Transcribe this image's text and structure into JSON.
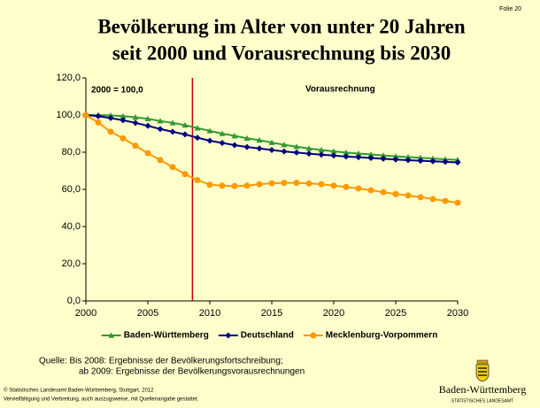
{
  "slide_label": "Folie 20",
  "chart_data": {
    "type": "line",
    "title": [
      "Bevölkerung im Alter von unter 20 Jahren",
      "seit 2000 und Vorausrechnung bis 2030"
    ],
    "annotations": [
      "2000 = 100,0",
      "Vorausrechnung"
    ],
    "forecast_start": 2008.6,
    "x": [
      2000,
      2001,
      2002,
      2003,
      2004,
      2005,
      2006,
      2007,
      2008,
      2009,
      2010,
      2011,
      2012,
      2013,
      2014,
      2015,
      2016,
      2017,
      2018,
      2019,
      2020,
      2021,
      2022,
      2023,
      2024,
      2025,
      2026,
      2027,
      2028,
      2029,
      2030
    ],
    "xlim": [
      2000,
      2030
    ],
    "xticks": [
      2000,
      2005,
      2010,
      2015,
      2020,
      2025,
      2030
    ],
    "ylim": [
      0,
      120
    ],
    "yticks": [
      {
        "value": 0,
        "label": "0,0"
      },
      {
        "value": 20,
        "label": "20,0"
      },
      {
        "value": 40,
        "label": "40,0"
      },
      {
        "value": 60,
        "label": "60,0"
      },
      {
        "value": 80,
        "label": "80,0"
      },
      {
        "value": 100,
        "label": "100,0"
      },
      {
        "value": 120,
        "label": "120,0"
      }
    ],
    "grid": false,
    "legend": "bottom",
    "series": [
      {
        "name": "Baden-Württemberg",
        "color": "#339933",
        "marker": "triangle",
        "values": [
          100,
          100,
          99.8,
          99.4,
          98.8,
          98,
          96.8,
          95.8,
          94.6,
          93,
          91.5,
          90,
          88.8,
          87.5,
          86.5,
          85.2,
          84,
          83,
          82,
          81.2,
          80.5,
          79.8,
          79.3,
          78.8,
          78.3,
          77.8,
          77.4,
          77,
          76.6,
          76.2,
          75.9
        ]
      },
      {
        "name": "Deutschland",
        "color": "#000080",
        "marker": "diamond",
        "values": [
          100,
          99.4,
          98.4,
          97.2,
          95.8,
          94.2,
          92.5,
          91,
          89.6,
          87.8,
          86.2,
          85,
          83.8,
          82.8,
          82,
          81.2,
          80.4,
          79.8,
          79.2,
          78.7,
          78.2,
          77.7,
          77.3,
          76.9,
          76.5,
          76.1,
          75.7,
          75.4,
          75.1,
          74.8,
          74.5
        ]
      },
      {
        "name": "Mecklenburg-Vorpommern",
        "color": "#ff9900",
        "marker": "circle",
        "values": [
          100,
          96,
          91,
          87.5,
          83.5,
          79.5,
          75.8,
          72,
          68.2,
          65,
          62.5,
          62,
          61.8,
          62,
          62.8,
          63.3,
          63.5,
          63.5,
          63.2,
          62.8,
          62,
          61.3,
          60.5,
          59.5,
          58.5,
          57.5,
          56.7,
          55.8,
          54.8,
          53.8,
          52.8
        ]
      }
    ]
  },
  "source": [
    "Quelle: Bis 2008: Ergebnisse der Bevölkerungsfortschreibung;",
    "ab 2009: Ergebnisse der Bevölkerungsvorausrechnungen"
  ],
  "footer": [
    "© Statistisches Landesamt Baden-Württemberg, Stuttgart, 2012",
    "Vervielfältigung und Verbreitung, auch auszugsweise, mit Quellenangabe gestattet."
  ],
  "logo": {
    "name": "Baden-Württemberg",
    "subtitle": "STATISTISCHES LANDESAMT"
  }
}
